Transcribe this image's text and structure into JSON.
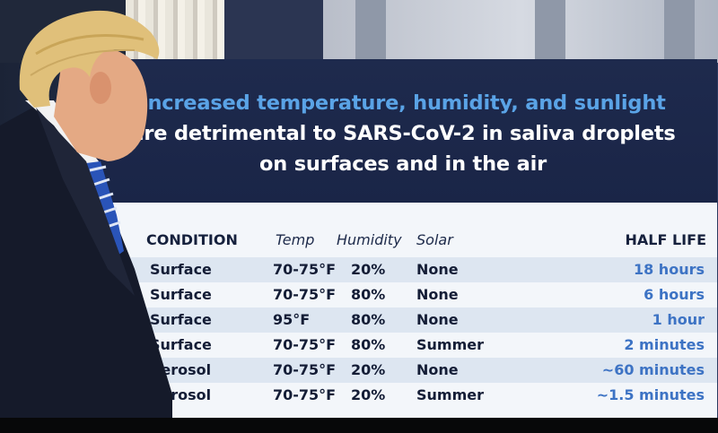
{
  "headline": {
    "line1": "Increased temperature, humidity, and sunlight",
    "line2": "are detrimental to SARS-CoV-2 in saliva droplets",
    "line3": "on surfaces and in the air"
  },
  "table": {
    "headers": {
      "condition": "CONDITION",
      "temp": "Temp",
      "humidity": "Humidity",
      "solar": "Solar",
      "half_life": "HALF LIFE"
    },
    "rows": [
      {
        "condition": "Surface",
        "temp": "70-75°F",
        "humidity": "20%",
        "solar": "None",
        "half_life": "18 hours"
      },
      {
        "condition": "Surface",
        "temp": "70-75°F",
        "humidity": "80%",
        "solar": "None",
        "half_life": "6 hours"
      },
      {
        "condition": "Surface",
        "temp": "95°F",
        "humidity": "80%",
        "solar": "None",
        "half_life": "1 hour"
      },
      {
        "condition": "Surface",
        "temp": "70-75°F",
        "humidity": "80%",
        "solar": "Summer",
        "half_life": "2 minutes"
      },
      {
        "condition": "Aerosol",
        "temp": "70-75°F",
        "humidity": "20%",
        "solar": "None",
        "half_life": "~60 minutes"
      },
      {
        "condition": "Aerosol",
        "temp": "70-75°F",
        "humidity": "20%",
        "solar": "Summer",
        "half_life": "~1.5 minutes"
      }
    ]
  },
  "colors": {
    "headline_accent": "#5aa3e6",
    "header_bg": "#1e2a4d",
    "half_life_text": "#3d73c4"
  }
}
